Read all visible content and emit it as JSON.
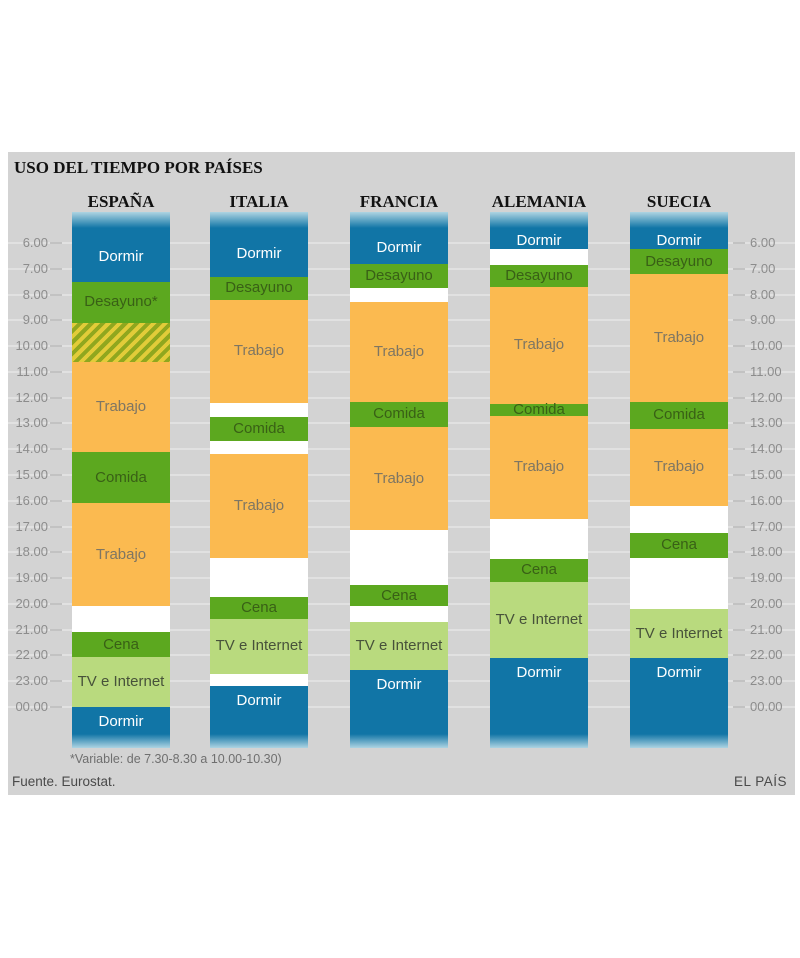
{
  "title": "USO DEL TIEMPO POR PAÍSES",
  "footnote": "*Variable: de 7.30-8.30 a 10.00-10.30)",
  "source": "Fuente. Eurostat.",
  "brand": "EL PAÍS",
  "colors": {
    "panel_bg": "#d3d3d3",
    "gridline": "#e1e1e1",
    "tick": "#c2c2c2",
    "axis_text": "#8c8c8c",
    "dormir": "#1175a6",
    "dormir_fade": "#aed4e2",
    "green": "#5ca81f",
    "trabajo": "#fbba50",
    "tv": "#b9da7e",
    "variable_stripe_yellow": "#e2cc39",
    "variable_stripe_green": "#90a71e",
    "label_on_blue": "#ffffff",
    "label_on_green": "#396016",
    "label_on_orange": "#7e7663",
    "label_on_lightgreen": "#47523a"
  },
  "chart_data": {
    "type": "time-schedule-columns",
    "time_axis": {
      "unit": "hour",
      "tick_labels": [
        "6.00",
        "7.00",
        "8.00",
        "9.00",
        "10.00",
        "11.00",
        "12.00",
        "13.00",
        "14.00",
        "15.00",
        "16.00",
        "17.00",
        "18.00",
        "19.00",
        "20.00",
        "21.00",
        "22.00",
        "23.00",
        "00.00"
      ],
      "tick_values": [
        6,
        7,
        8,
        9,
        10,
        11,
        12,
        13,
        14,
        15,
        16,
        17,
        18,
        19,
        20,
        21,
        22,
        23,
        24
      ],
      "labels_on_both_sides": true,
      "grid": true
    },
    "column_span": {
      "top": 4.8,
      "bottom": 25.6
    },
    "activity_legend": {
      "dormir": "Dormir",
      "desayuno": "Desayuno",
      "trabajo": "Trabajo",
      "comida": "Comida",
      "cena": "Cena",
      "tv": "TV e Internet",
      "variable": "horario variable (rayado)"
    },
    "countries": [
      {
        "name": "ESPAÑA",
        "segments": [
          {
            "activity": "Dormir",
            "type": "dormir",
            "start": 4.8,
            "end": 7.5,
            "fade_top": true
          },
          {
            "activity": "Desayuno*",
            "type": "desayuno",
            "start": 7.5,
            "end": 9.1
          },
          {
            "activity": "",
            "type": "variable",
            "start": 9.1,
            "end": 10.6
          },
          {
            "activity": "Trabajo",
            "type": "trabajo",
            "start": 10.6,
            "end": 14.1
          },
          {
            "activity": "Comida",
            "type": "comida",
            "start": 14.1,
            "end": 16.1
          },
          {
            "activity": "Trabajo",
            "type": "trabajo",
            "start": 16.1,
            "end": 20.1
          },
          {
            "activity": "Cena",
            "type": "cena",
            "start": 21.1,
            "end": 22.05
          },
          {
            "activity": "TV e Internet",
            "type": "tv",
            "start": 22.05,
            "end": 24.0
          },
          {
            "activity": "Dormir",
            "type": "dormir",
            "start": 24.0,
            "end": 25.6,
            "fade_bottom": true
          }
        ]
      },
      {
        "name": "ITALIA",
        "segments": [
          {
            "activity": "Dormir",
            "type": "dormir",
            "start": 4.8,
            "end": 7.3,
            "fade_top": true
          },
          {
            "activity": "Desayuno",
            "type": "desayuno",
            "start": 7.3,
            "end": 8.2
          },
          {
            "activity": "Trabajo",
            "type": "trabajo",
            "start": 8.2,
            "end": 12.2
          },
          {
            "activity": "Comida",
            "type": "comida",
            "start": 12.75,
            "end": 13.7
          },
          {
            "activity": "Trabajo",
            "type": "trabajo",
            "start": 14.2,
            "end": 18.2
          },
          {
            "activity": "Cena",
            "type": "cena",
            "start": 19.75,
            "end": 20.6
          },
          {
            "activity": "TV e Internet",
            "type": "tv",
            "start": 20.6,
            "end": 22.7
          },
          {
            "activity": "Dormir",
            "type": "dormir",
            "start": 23.2,
            "end": 25.6,
            "fade_bottom": true
          }
        ]
      },
      {
        "name": "FRANCIA",
        "segments": [
          {
            "activity": "Dormir",
            "type": "dormir",
            "start": 4.8,
            "end": 6.8,
            "fade_top": true
          },
          {
            "activity": "Desayuno",
            "type": "desayuno",
            "start": 6.8,
            "end": 7.75
          },
          {
            "activity": "Trabajo",
            "type": "trabajo",
            "start": 8.3,
            "end": 12.15
          },
          {
            "activity": "Comida",
            "type": "comida",
            "start": 12.15,
            "end": 13.15
          },
          {
            "activity": "Trabajo",
            "type": "trabajo",
            "start": 13.15,
            "end": 17.15
          },
          {
            "activity": "Cena",
            "type": "cena",
            "start": 19.25,
            "end": 20.1
          },
          {
            "activity": "TV e Internet",
            "type": "tv",
            "start": 20.7,
            "end": 22.55
          },
          {
            "activity": "Dormir",
            "type": "dormir",
            "start": 22.55,
            "end": 25.6,
            "fade_bottom": true
          }
        ]
      },
      {
        "name": "ALEMANIA",
        "segments": [
          {
            "activity": "Dormir",
            "type": "dormir",
            "start": 4.8,
            "end": 6.25,
            "fade_top": true
          },
          {
            "activity": "Desayuno",
            "type": "desayuno",
            "start": 6.85,
            "end": 7.7
          },
          {
            "activity": "Trabajo",
            "type": "trabajo",
            "start": 7.7,
            "end": 12.25
          },
          {
            "activity": "Comida",
            "type": "comida",
            "start": 12.25,
            "end": 12.7
          },
          {
            "activity": "Trabajo",
            "type": "trabajo",
            "start": 12.7,
            "end": 16.7
          },
          {
            "activity": "Cena",
            "type": "cena",
            "start": 18.25,
            "end": 19.15
          },
          {
            "activity": "TV e Internet",
            "type": "tv",
            "start": 19.15,
            "end": 22.1
          },
          {
            "activity": "Dormir",
            "type": "dormir",
            "start": 22.1,
            "end": 25.6,
            "fade_bottom": true
          }
        ]
      },
      {
        "name": "SUECIA",
        "segments": [
          {
            "activity": "Dormir",
            "type": "dormir",
            "start": 4.8,
            "end": 6.25,
            "fade_top": true
          },
          {
            "activity": "Desayuno",
            "type": "desayuno",
            "start": 6.25,
            "end": 7.2
          },
          {
            "activity": "Trabajo",
            "type": "trabajo",
            "start": 7.2,
            "end": 12.15
          },
          {
            "activity": "Comida",
            "type": "comida",
            "start": 12.15,
            "end": 13.2
          },
          {
            "activity": "Trabajo",
            "type": "trabajo",
            "start": 13.2,
            "end": 16.2
          },
          {
            "activity": "Cena",
            "type": "cena",
            "start": 17.25,
            "end": 18.2
          },
          {
            "activity": "TV e Internet",
            "type": "tv",
            "start": 20.2,
            "end": 22.1
          },
          {
            "activity": "Dormir",
            "type": "dormir",
            "start": 22.1,
            "end": 25.6,
            "fade_bottom": true
          }
        ]
      }
    ]
  }
}
